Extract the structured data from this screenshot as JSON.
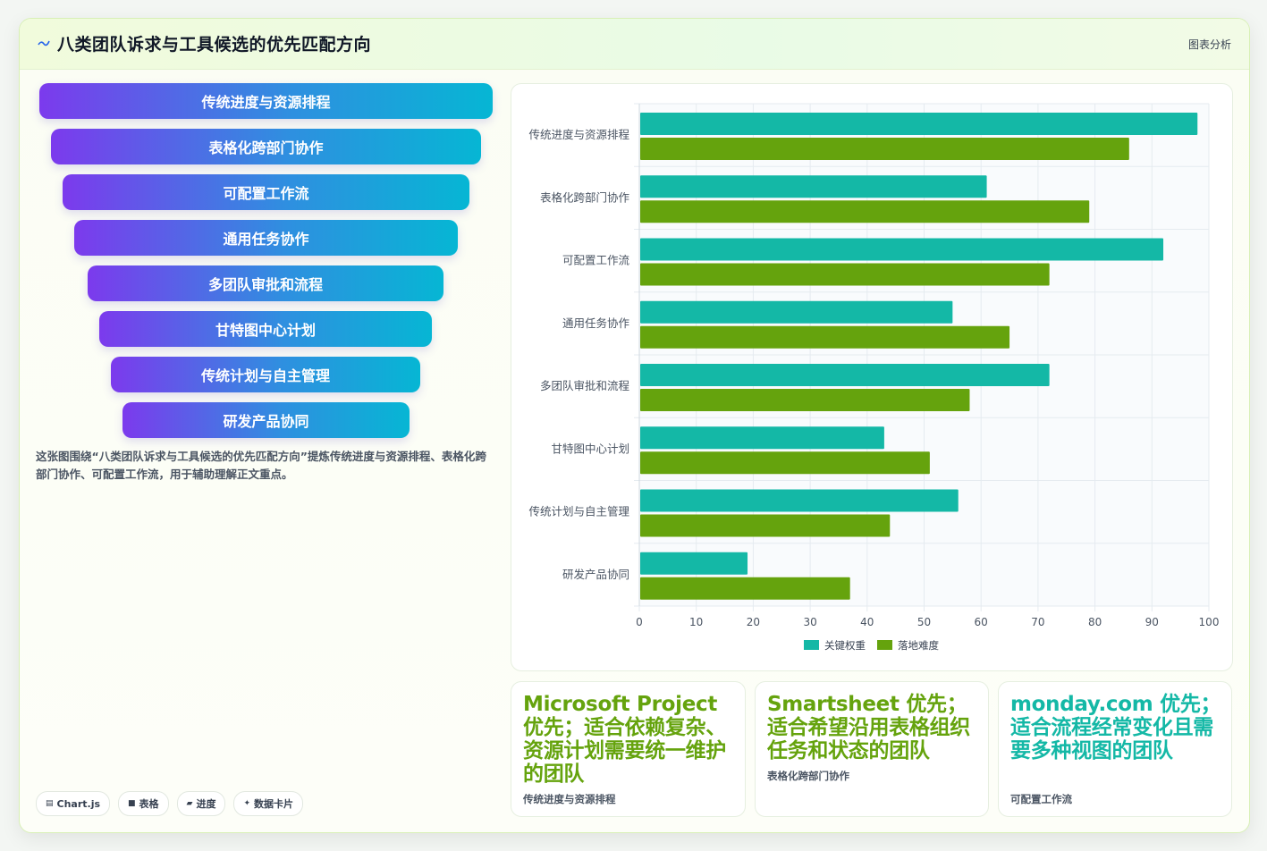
{
  "header": {
    "title": "八类团队诉求与工具候选的优先匹配方向",
    "tag": "图表分析"
  },
  "funnel": {
    "steps": [
      "传统进度与资源排程",
      "表格化跨部门协作",
      "可配置工作流",
      "通用任务协作",
      "多团队审批和流程",
      "甘特图中心计划",
      "传统计划与自主管理",
      "研发产品协同"
    ],
    "description": "这张图围绕“八类团队诉求与工具候选的优先匹配方向”提炼传统进度与资源排程、表格化跨部门协作、可配置工作流，用于辅助理解正文重点。"
  },
  "badges": [
    {
      "icon": "chart-icon",
      "label": "Chart.js"
    },
    {
      "icon": "table-icon",
      "label": "表格"
    },
    {
      "icon": "progress-icon",
      "label": "进度"
    },
    {
      "icon": "sparkle-icon",
      "label": "数据卡片"
    }
  ],
  "tools": [
    {
      "head": "Microsoft Project 优先；适合依赖复杂、资源计划需要统一维护的团队",
      "sub": "传统进度与资源排程",
      "color": "#65a30d"
    },
    {
      "head": "Smartsheet 优先；适合希望沿用表格组织任务和状态的团队",
      "sub": "表格化跨部门协作",
      "color": "#65a30d"
    },
    {
      "head": "monday.com 优先；适合流程经常变化且需要多种视图的团队",
      "sub": "可配置工作流",
      "color": "#14b8a6"
    }
  ],
  "chart_data": {
    "type": "bar",
    "orientation": "horizontal",
    "categories": [
      "传统进度与资源排程",
      "表格化跨部门协作",
      "可配置工作流",
      "通用任务协作",
      "多团队审批和流程",
      "甘特图中心计划",
      "传统计划与自主管理",
      "研发产品协同"
    ],
    "series": [
      {
        "name": "关键权重",
        "color": "#14b8a6",
        "values": [
          98,
          61,
          92,
          55,
          72,
          43,
          56,
          19
        ]
      },
      {
        "name": "落地难度",
        "color": "#65a30d",
        "values": [
          86,
          79,
          72,
          65,
          58,
          51,
          44,
          37
        ]
      }
    ],
    "xlim": [
      0,
      100
    ],
    "xticks": [
      0,
      10,
      20,
      30,
      40,
      50,
      60,
      70,
      80,
      90,
      100
    ],
    "grid": true,
    "legend": "bottom"
  }
}
